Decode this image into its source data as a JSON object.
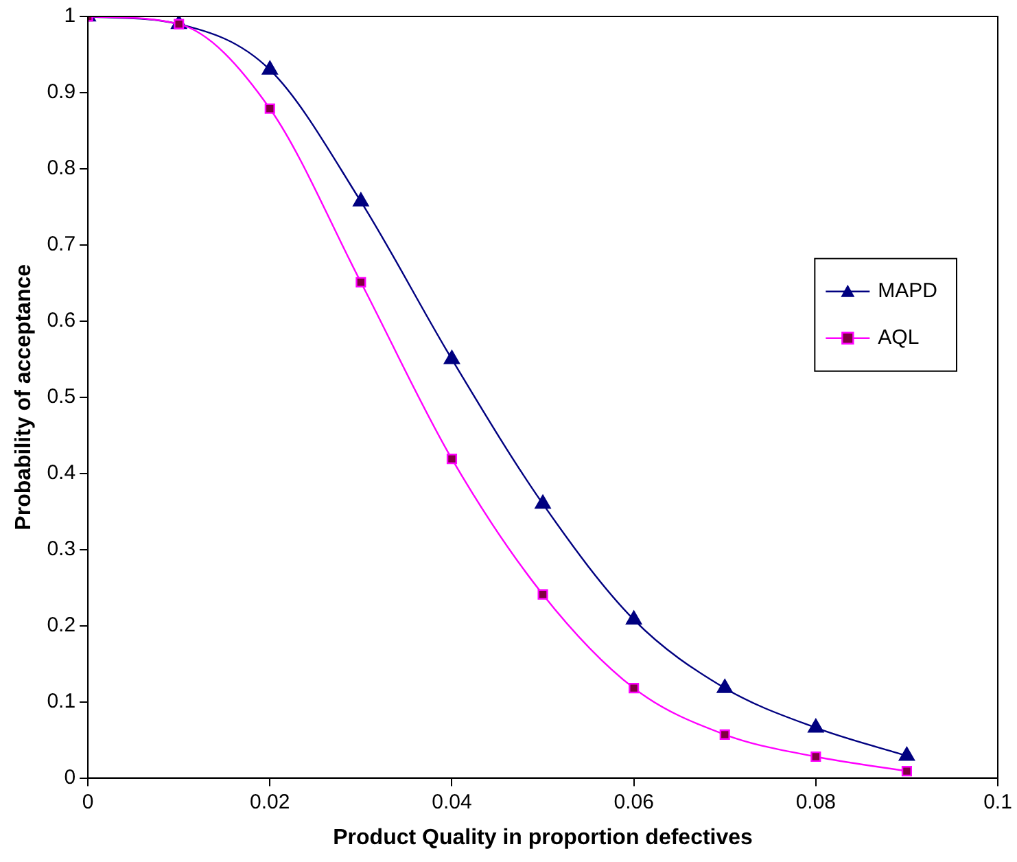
{
  "chart_data": {
    "type": "line",
    "xlabel": "Product Quality in proportion defectives",
    "ylabel": "Probability of acceptance",
    "x": [
      0,
      0.01,
      0.02,
      0.03,
      0.04,
      0.05,
      0.06,
      0.07,
      0.08,
      0.09
    ],
    "series": [
      {
        "name": "MAPD",
        "color": "#000080",
        "marker": "triangle",
        "values": [
          1,
          0.99,
          0.93,
          0.757,
          0.55,
          0.36,
          0.208,
          0.118,
          0.066,
          0.029
        ]
      },
      {
        "name": "AQL",
        "color": "#ff00ff",
        "marker": "square",
        "values": [
          1,
          0.99,
          0.879,
          0.651,
          0.419,
          0.241,
          0.118,
          0.057,
          0.028,
          0.009
        ]
      }
    ],
    "xlim": [
      0,
      0.1
    ],
    "xticks": [
      0,
      0.02,
      0.04,
      0.06,
      0.08,
      0.1
    ],
    "ylim": [
      0,
      1
    ],
    "yticks": [
      0,
      0.1,
      0.2,
      0.3,
      0.4,
      0.5,
      0.6,
      0.7,
      0.8,
      0.9,
      1
    ],
    "grid": false,
    "legend": "right",
    "line_style": "solid"
  }
}
